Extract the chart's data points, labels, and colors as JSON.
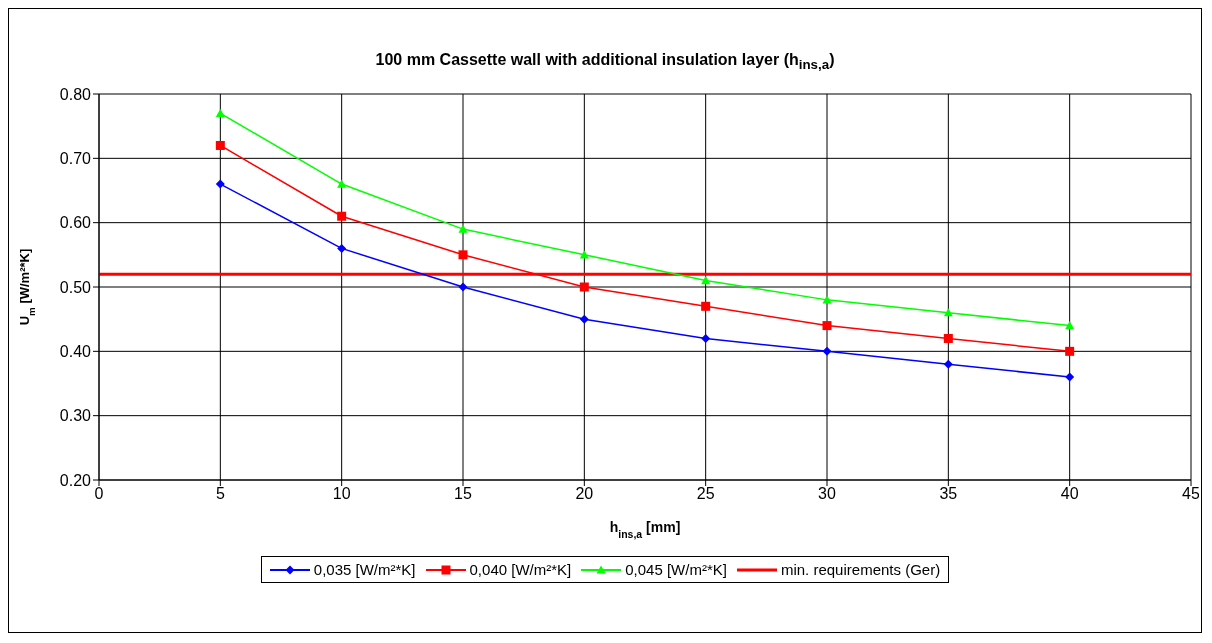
{
  "chart_data": {
    "type": "line",
    "title": "100 mm Cassette wall with additional insulation layer (h$_{ins,a}$)",
    "xlabel": "h$_{ins,a}$ [mm]",
    "ylabel": "U$_{m}$ [W/m²*K]",
    "x": [
      5,
      10,
      15,
      20,
      25,
      30,
      35,
      40
    ],
    "series": [
      {
        "name": "0,035 [W/m²*K]",
        "color": "#0000ff",
        "marker": "diamond",
        "values": [
          0.66,
          0.56,
          0.5,
          0.45,
          0.42,
          0.4,
          0.38,
          0.36
        ]
      },
      {
        "name": "0,040 [W/m²*K]",
        "color": "#ff0000",
        "marker": "square",
        "values": [
          0.72,
          0.61,
          0.55,
          0.5,
          0.47,
          0.44,
          0.42,
          0.4
        ]
      },
      {
        "name": "0,045 [W/m²*K]",
        "color": "#00ff00",
        "marker": "triangle",
        "values": [
          0.77,
          0.66,
          0.59,
          0.55,
          0.51,
          0.48,
          0.46,
          0.44
        ]
      }
    ],
    "ref_lines": [
      {
        "axis": "y",
        "value": 0.52,
        "label": "min. requirements (Ger)",
        "color": "#ff0000"
      }
    ],
    "xlim": [
      0,
      45
    ],
    "xticks": [
      0,
      5,
      10,
      15,
      20,
      25,
      30,
      35,
      40,
      45
    ],
    "ylim": [
      0.2,
      0.8
    ],
    "yticks": [
      {
        "value": 0.2,
        "label": "0.20"
      },
      {
        "value": 0.3,
        "label": "0.30"
      },
      {
        "value": 0.4,
        "label": "0.40"
      },
      {
        "value": 0.5,
        "label": "0.50"
      },
      {
        "value": 0.6,
        "label": "0.60"
      },
      {
        "value": 0.7,
        "label": "0.70"
      },
      {
        "value": 0.8,
        "label": "0.80"
      }
    ],
    "grid": true,
    "legend": "bottom",
    "line_style": "solid"
  }
}
